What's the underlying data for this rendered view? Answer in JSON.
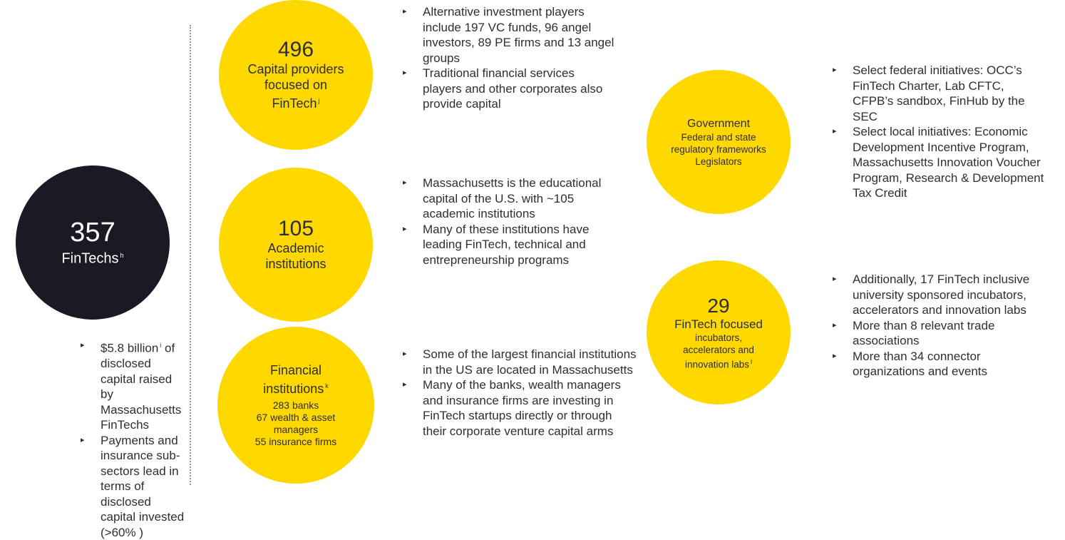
{
  "left": {
    "number": 357,
    "label": "FinTechs",
    "note": "h",
    "bullets": [
      {
        "text": "$5.8 billion",
        "note": "i",
        "rest": "of disclosed capital raised by Massachusetts FinTechs"
      },
      {
        "text": "Payments and insurance sub-sectors lead in terms of disclosed capital invested (>60% )"
      }
    ]
  },
  "capital": {
    "number": 496,
    "label": "Capital providers focused on FinTech",
    "note": "j",
    "bullets": [
      "Alternative investment players include 197 VC funds, 96 angel investors, 89 PE firms and 13 angel groups",
      "Traditional financial services players and other corporates also provide capital"
    ]
  },
  "academic": {
    "number": 105,
    "label": "Academic institutions",
    "bullets": [
      "Massachusetts is the educational capital of the U.S. with ~105 academic institutions",
      "Many of these institutions have leading FinTech, technical and entrepreneurship programs"
    ]
  },
  "financial": {
    "title": "Financial institutions",
    "note": "k",
    "items": [
      {
        "count": 283,
        "label": "banks"
      },
      {
        "count": 67,
        "label": "wealth & asset managers"
      },
      {
        "count": 55,
        "label": "insurance firms"
      }
    ],
    "bullets": [
      "Some of the largest financial institutions in the US are located in Massachusetts",
      "Many of the banks, wealth managers and insurance firms are investing in FinTech startups directly or through their corporate venture capital arms"
    ]
  },
  "government": {
    "title": "Government",
    "lines": [
      "Federal and state regulatory frameworks",
      "Legislators"
    ],
    "bullets": [
      "Select federal initiatives: OCC’s FinTech Charter, Lab CFTC, CFPB’s sandbox, FinHub by the SEC",
      "Select local initiatives: Economic Development Incentive Program, Massachusetts Innovation Voucher Program, Research & Development Tax Credit"
    ]
  },
  "incubators": {
    "number": 29,
    "title": "FinTech focused",
    "description": "incubators, accelerators and innovation labs",
    "note": "l",
    "bullets": [
      "Additionally, 17 FinTech inclusive university sponsored incubators, accelerators and innovation labs",
      "More than 8 relevant trade associations",
      "More than 34 connector organizations and events"
    ]
  }
}
